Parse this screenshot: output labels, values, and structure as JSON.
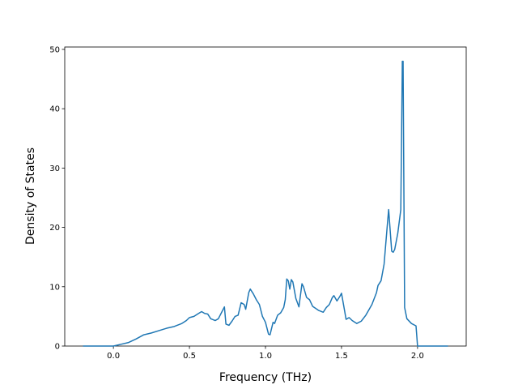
{
  "chart_data": {
    "type": "line",
    "xlabel": "Frequency (THz)",
    "ylabel": "Density of States",
    "x": [
      -0.2,
      0.0,
      0.05,
      0.1,
      0.15,
      0.2,
      0.25,
      0.3,
      0.35,
      0.4,
      0.45,
      0.48,
      0.5,
      0.53,
      0.56,
      0.58,
      0.6,
      0.62,
      0.64,
      0.67,
      0.69,
      0.71,
      0.73,
      0.74,
      0.76,
      0.78,
      0.8,
      0.82,
      0.84,
      0.86,
      0.87,
      0.89,
      0.9,
      0.92,
      0.94,
      0.96,
      0.98,
      1.0,
      1.02,
      1.03,
      1.05,
      1.06,
      1.08,
      1.1,
      1.12,
      1.13,
      1.14,
      1.15,
      1.16,
      1.17,
      1.18,
      1.2,
      1.22,
      1.24,
      1.25,
      1.27,
      1.29,
      1.31,
      1.35,
      1.38,
      1.4,
      1.42,
      1.44,
      1.45,
      1.47,
      1.49,
      1.5,
      1.52,
      1.53,
      1.55,
      1.57,
      1.6,
      1.63,
      1.66,
      1.7,
      1.73,
      1.74,
      1.76,
      1.78,
      1.8,
      1.81,
      1.83,
      1.84,
      1.85,
      1.87,
      1.89,
      1.9,
      1.905,
      1.915,
      1.93,
      1.96,
      1.99,
      2.0,
      2.2
    ],
    "values": [
      0,
      0,
      0.3,
      0.6,
      1.2,
      1.9,
      2.2,
      2.6,
      3.0,
      3.3,
      3.8,
      4.3,
      4.8,
      5.0,
      5.5,
      5.8,
      5.5,
      5.4,
      4.6,
      4.3,
      4.6,
      5.6,
      6.6,
      3.7,
      3.5,
      4.2,
      5.0,
      5.2,
      7.3,
      7.0,
      6.2,
      9.0,
      9.6,
      8.8,
      7.8,
      7.0,
      5.0,
      4.0,
      2.0,
      1.9,
      4.0,
      3.8,
      5.2,
      5.6,
      6.5,
      7.8,
      11.3,
      11.0,
      9.6,
      11.2,
      10.8,
      8.0,
      6.6,
      10.5,
      10.0,
      8.2,
      7.8,
      6.7,
      6.0,
      5.7,
      6.5,
      7.0,
      8.2,
      8.5,
      7.6,
      8.4,
      8.9,
      6.0,
      4.5,
      4.8,
      4.3,
      3.8,
      4.2,
      5.2,
      7.0,
      9.0,
      10.2,
      11.0,
      13.8,
      20.0,
      23.0,
      16.0,
      15.8,
      16.3,
      19.0,
      23.0,
      48.0,
      48.0,
      6.5,
      4.6,
      3.8,
      3.4,
      0,
      0
    ],
    "color": "#1f77b4",
    "xlim": [
      -0.32,
      2.32
    ],
    "xticks": [
      {
        "value": 0.0,
        "label": "0.0"
      },
      {
        "value": 0.5,
        "label": "0.5"
      },
      {
        "value": 1.0,
        "label": "1.0"
      },
      {
        "value": 1.5,
        "label": "1.5"
      },
      {
        "value": 2.0,
        "label": "2.0"
      }
    ],
    "ylim": [
      0,
      50.4
    ],
    "yticks": [
      0,
      10,
      20,
      30,
      40,
      50
    ]
  }
}
